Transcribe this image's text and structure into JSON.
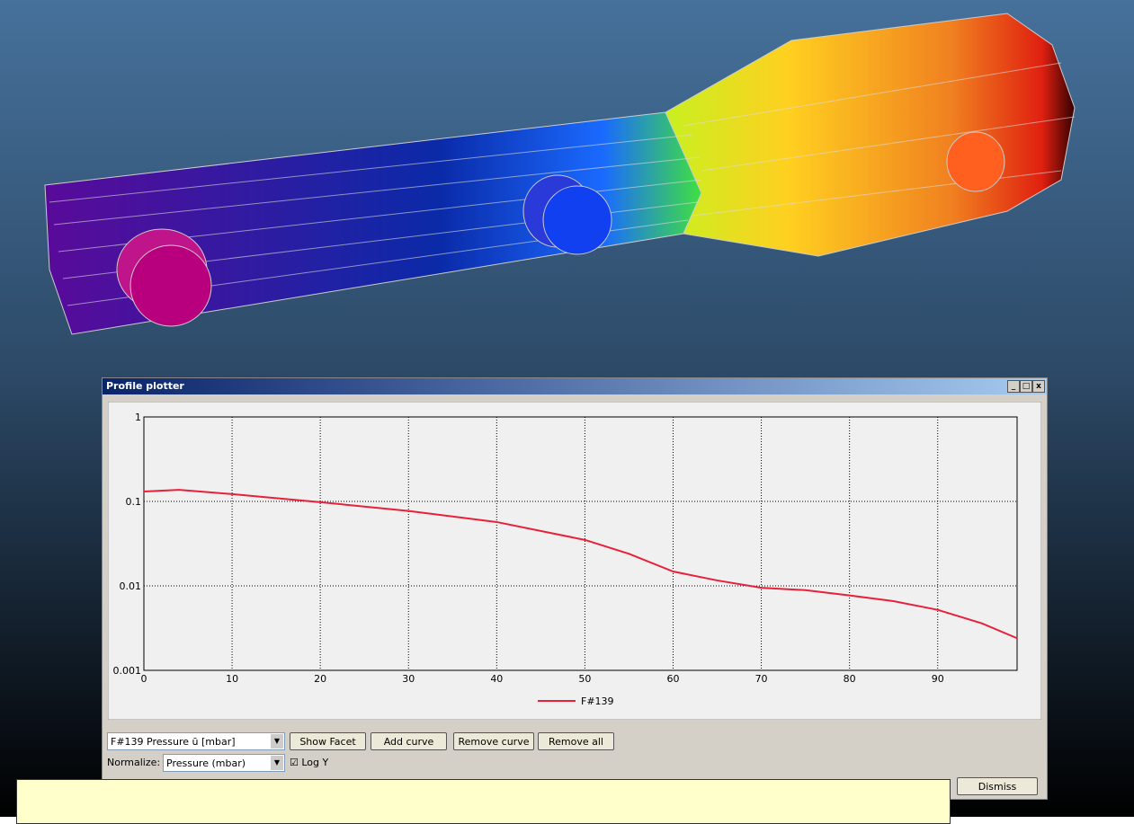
{
  "window": {
    "title": "Profile plotter",
    "controls": {
      "profile_select": "F#139 Pressure ū [mbar]",
      "show_facet": "Show Facet",
      "add_curve": "Add curve",
      "remove_curve": "Remove curve",
      "remove_all": "Remove all",
      "normalize_label": "Normalize:",
      "normalize_select": "Pressure (mbar)",
      "log_y": "Log Y",
      "dismiss": "Dismiss"
    }
  },
  "chart_data": {
    "type": "line",
    "log_y": true,
    "grid": true,
    "x": [
      0,
      4,
      10,
      20,
      30,
      40,
      50,
      55,
      60,
      65,
      70,
      75,
      80,
      85,
      90,
      95,
      99
    ],
    "series": [
      {
        "name": "F#139",
        "color": "#e8203a",
        "values": [
          0.131,
          0.137,
          0.122,
          0.098,
          0.077,
          0.057,
          0.035,
          0.024,
          0.0148,
          0.0116,
          0.0095,
          0.0089,
          0.0077,
          0.0066,
          0.0052,
          0.0036,
          0.0024
        ]
      }
    ],
    "xlim": [
      0,
      99
    ],
    "xticks": [
      0,
      10,
      20,
      30,
      40,
      50,
      60,
      70,
      80,
      90
    ],
    "ylim": [
      0.001,
      1
    ],
    "yticks": [
      0.001,
      0.01,
      0.1,
      1
    ]
  }
}
